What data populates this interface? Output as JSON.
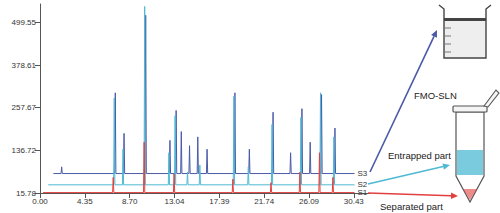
{
  "chart_data": {
    "type": "line",
    "xlim": [
      0,
      32
    ],
    "ylim": [
      15.78,
      552
    ],
    "xticks": [
      {
        "value": 0,
        "label": "0.00"
      },
      4.35,
      {
        "value": 8.7,
        "label": "8.70"
      },
      13.04,
      17.39,
      21.74,
      26.09,
      30.43
    ],
    "yticks": [
      15.78,
      136.72,
      257.67,
      378.61,
      499.55
    ],
    "grid": false,
    "series": [
      {
        "name": "S1",
        "color": "#e2403f",
        "x": [
          0.3,
          7.04,
          7.1,
          7.16,
          10.04,
          10.1,
          10.16,
          12.94,
          13.0,
          13.06,
          18.64,
          18.7,
          18.76,
          22.34,
          22.4,
          22.46,
          25.14,
          25.2,
          25.26,
          27.04,
          27.1,
          27.16,
          28.34,
          28.4,
          28.46,
          30.5
        ],
        "values": [
          17,
          17,
          60,
          17,
          17,
          160,
          17,
          17,
          70,
          17,
          17,
          55,
          17,
          17,
          45,
          17,
          17,
          75,
          17,
          17,
          130,
          17,
          17,
          60,
          17,
          17
        ]
      },
      {
        "name": "S2",
        "color": "#4fb9d3",
        "x": [
          0.8,
          7.14,
          7.2,
          7.26,
          7.99,
          8.05,
          8.11,
          10.09,
          10.15,
          10.21,
          12.44,
          12.5,
          12.56,
          13.04,
          13.1,
          13.16,
          14.24,
          14.3,
          14.36,
          15.44,
          15.5,
          15.56,
          18.74,
          18.8,
          18.86,
          20.14,
          20.2,
          20.26,
          22.44,
          22.5,
          22.56,
          25.24,
          25.3,
          25.36,
          27.14,
          27.2,
          27.26,
          28.44,
          28.5,
          28.56,
          30.5
        ],
        "values": [
          39,
          39,
          285,
          39,
          39,
          140,
          39,
          39,
          545,
          39,
          39,
          130,
          39,
          39,
          235,
          39,
          39,
          75,
          39,
          39,
          95,
          39,
          39,
          290,
          39,
          39,
          90,
          39,
          39,
          210,
          39,
          39,
          230,
          39,
          39,
          300,
          39,
          39,
          175,
          39,
          39
        ]
      },
      {
        "name": "S3",
        "color": "#4a5aa8",
        "x": [
          1.3,
          2.04,
          2.1,
          2.16,
          7.24,
          7.3,
          7.36,
          8.09,
          8.15,
          8.21,
          10.19,
          10.25,
          10.31,
          12.54,
          12.6,
          12.66,
          13.14,
          13.2,
          13.26,
          13.64,
          13.7,
          13.76,
          14.44,
          14.5,
          14.56,
          15.24,
          15.3,
          15.36,
          16.14,
          16.2,
          16.26,
          18.84,
          18.9,
          18.96,
          20.24,
          20.3,
          20.36,
          22.54,
          22.6,
          22.66,
          24.24,
          24.3,
          24.36,
          25.34,
          25.4,
          25.46,
          26.14,
          26.2,
          26.26,
          27.24,
          27.3,
          27.36,
          28.54,
          28.6,
          28.66,
          30.5
        ],
        "values": [
          71,
          71,
          90,
          71,
          71,
          300,
          71,
          71,
          185,
          71,
          71,
          520,
          71,
          71,
          165,
          71,
          71,
          250,
          71,
          71,
          190,
          71,
          71,
          150,
          71,
          71,
          175,
          71,
          71,
          140,
          71,
          71,
          300,
          71,
          71,
          140,
          71,
          71,
          245,
          71,
          71,
          130,
          71,
          71,
          255,
          71,
          71,
          160,
          71,
          71,
          295,
          71,
          71,
          200,
          71,
          71
        ]
      }
    ],
    "annotations": [
      {
        "text": "FMO-SLN",
        "series": "S3"
      },
      {
        "text": "Entrapped part",
        "series": "S2"
      },
      {
        "text": "Separated part",
        "series": "S1"
      }
    ]
  }
}
